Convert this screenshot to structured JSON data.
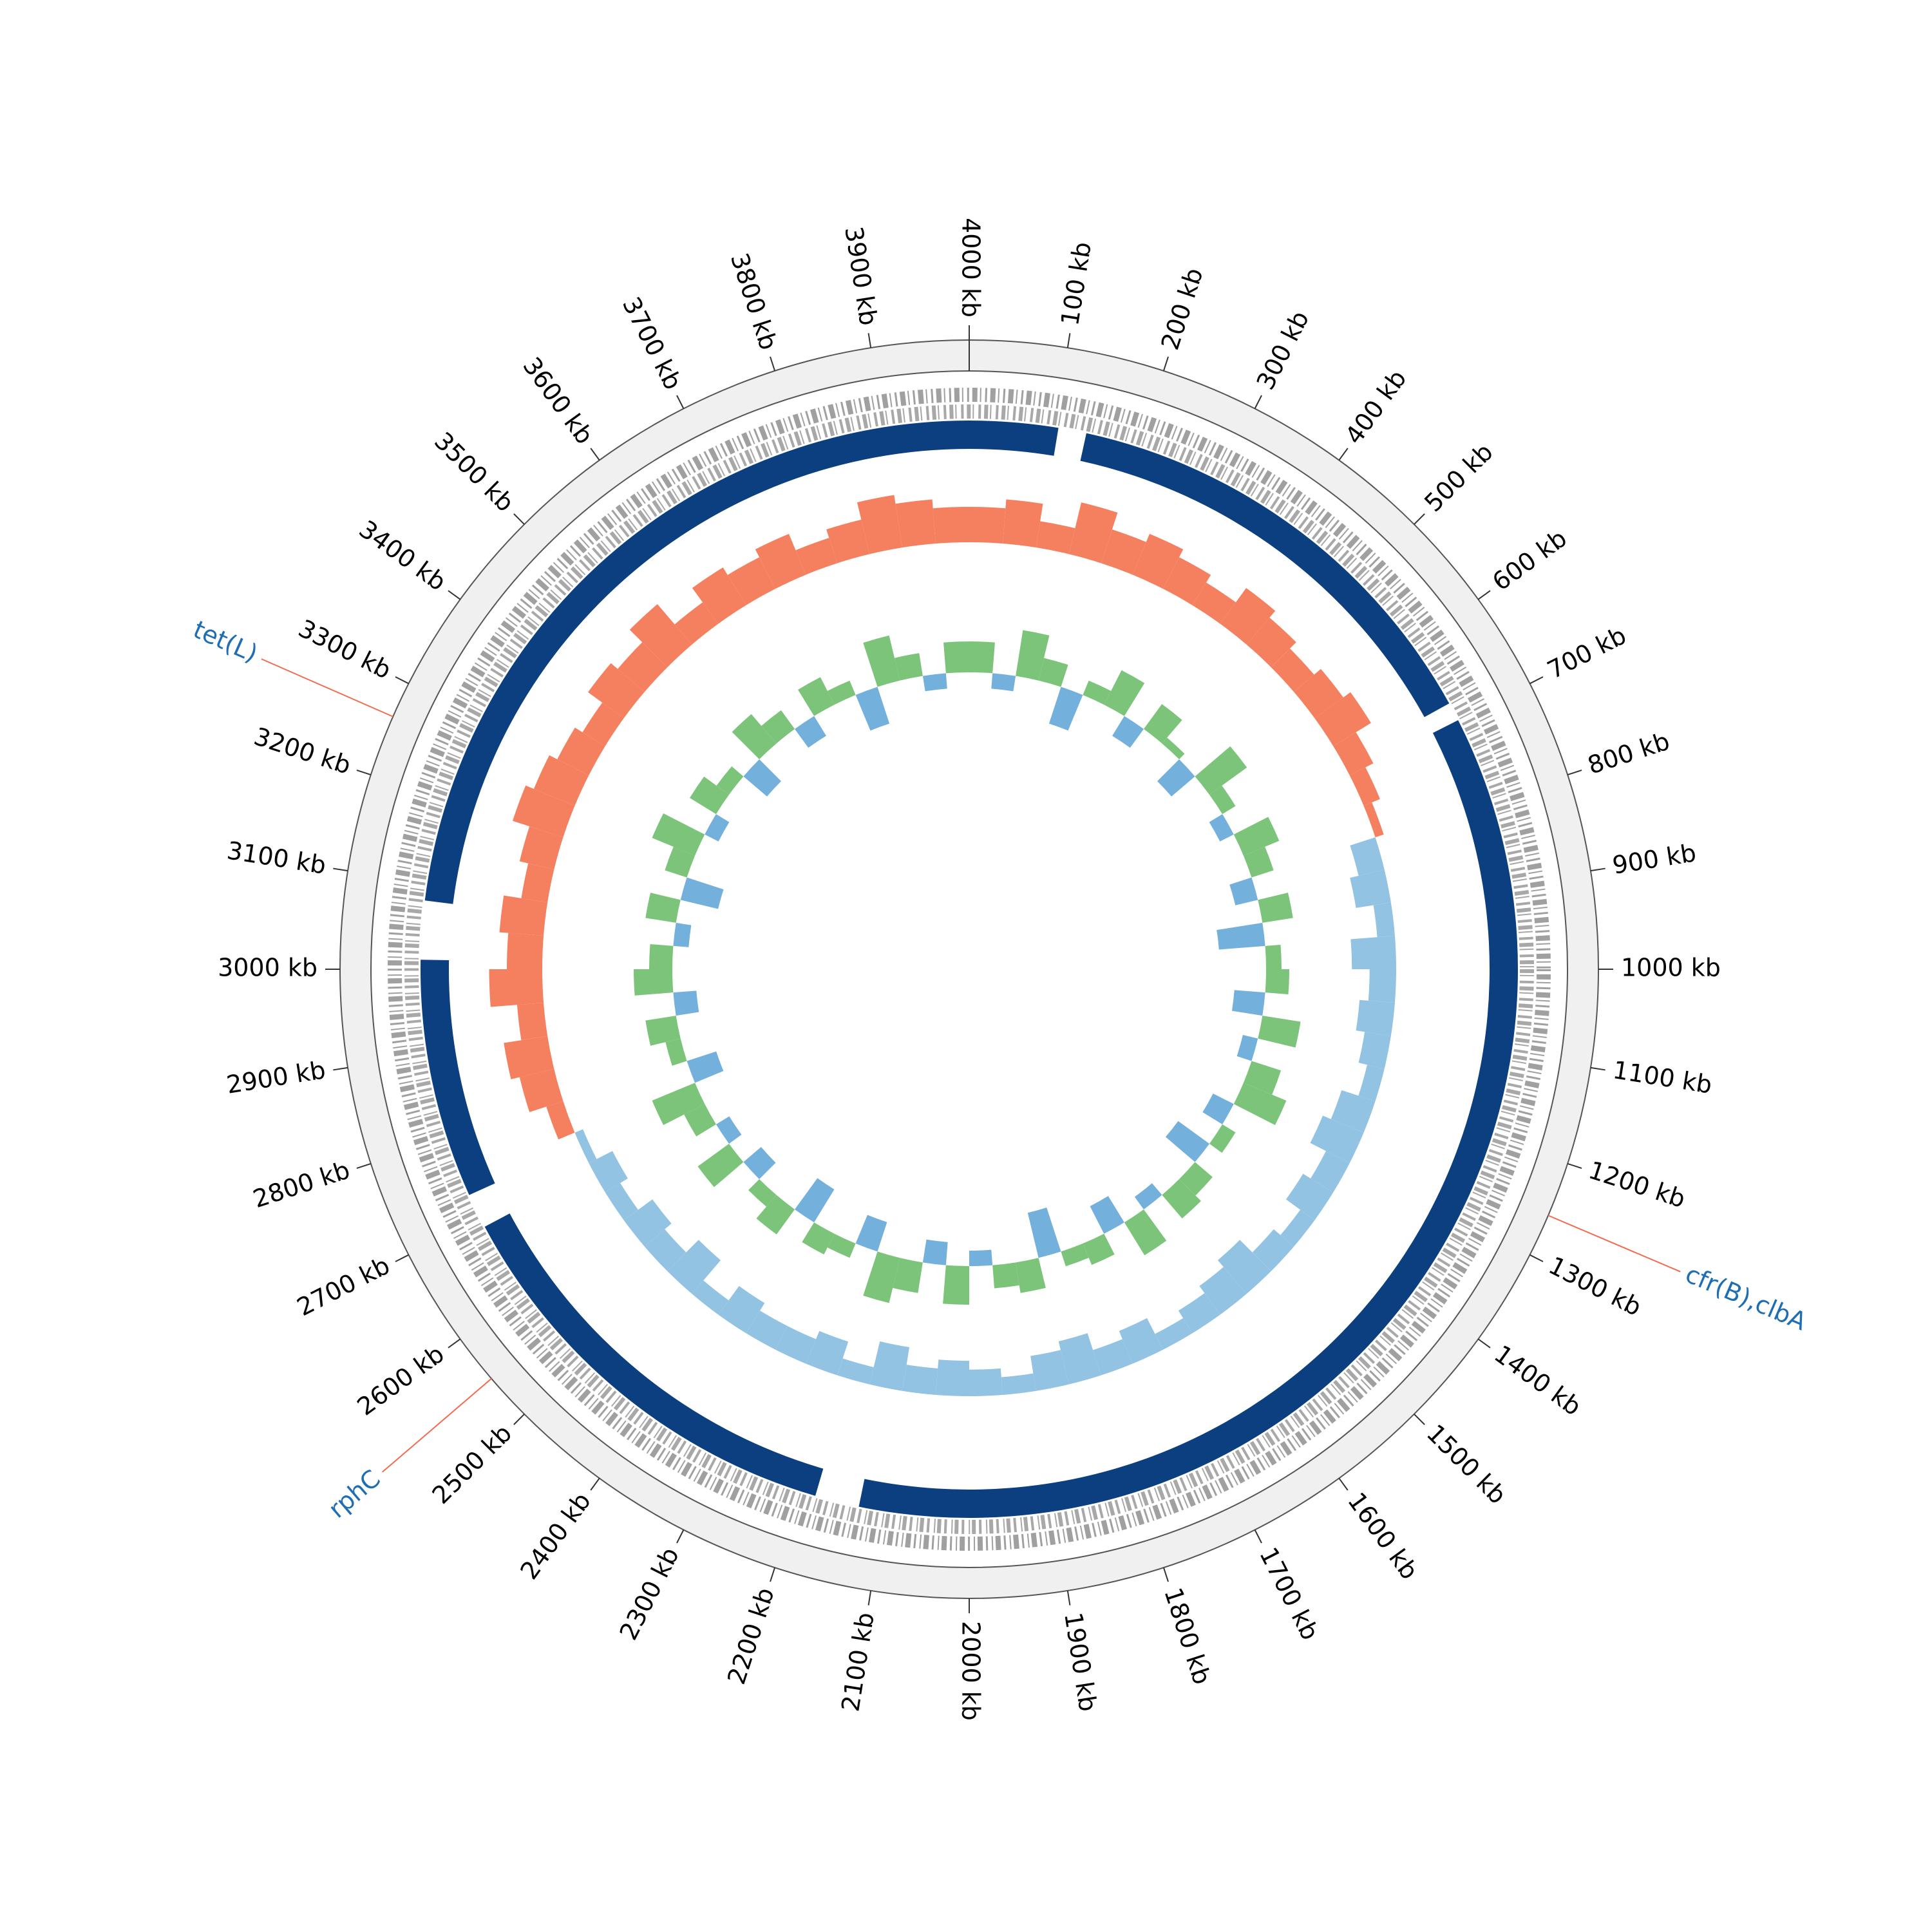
{
  "chart_data": {
    "type": "circular-genome",
    "xlim": [
      0,
      4000
    ],
    "xticks": [
      {
        "value": 100,
        "label": "100 kb"
      },
      {
        "value": 200,
        "label": "200 kb"
      },
      {
        "value": 300,
        "label": "300 kb"
      },
      {
        "value": 400,
        "label": "400 kb"
      },
      {
        "value": 500,
        "label": "500 kb"
      },
      {
        "value": 600,
        "label": "600 kb"
      },
      {
        "value": 700,
        "label": "700 kb"
      },
      {
        "value": 800,
        "label": "800 kb"
      },
      {
        "value": 900,
        "label": "900 kb"
      },
      {
        "value": 1000,
        "label": "1000 kb"
      },
      {
        "value": 1100,
        "label": "1100 kb"
      },
      {
        "value": 1200,
        "label": "1200 kb"
      },
      {
        "value": 1300,
        "label": "1300 kb"
      },
      {
        "value": 1400,
        "label": "1400 kb"
      },
      {
        "value": 1500,
        "label": "1500 kb"
      },
      {
        "value": 1600,
        "label": "1600 kb"
      },
      {
        "value": 1700,
        "label": "1700 kb"
      },
      {
        "value": 1800,
        "label": "1800 kb"
      },
      {
        "value": 1900,
        "label": "1900 kb"
      },
      {
        "value": 2000,
        "label": "2000 kb"
      },
      {
        "value": 2100,
        "label": "2100 kb"
      },
      {
        "value": 2200,
        "label": "2200 kb"
      },
      {
        "value": 2300,
        "label": "2300 kb"
      },
      {
        "value": 2400,
        "label": "2400 kb"
      },
      {
        "value": 2500,
        "label": "2500 kb"
      },
      {
        "value": 2600,
        "label": "2600 kb"
      },
      {
        "value": 2700,
        "label": "2700 kb"
      },
      {
        "value": 2800,
        "label": "2800 kb"
      },
      {
        "value": 2900,
        "label": "2900 kb"
      },
      {
        "value": 3000,
        "label": "3000 kb"
      },
      {
        "value": 3100,
        "label": "3100 kb"
      },
      {
        "value": 3200,
        "label": "3200 kb"
      },
      {
        "value": 3300,
        "label": "3300 kb"
      },
      {
        "value": 3400,
        "label": "3400 kb"
      },
      {
        "value": 3500,
        "label": "3500 kb"
      },
      {
        "value": 3600,
        "label": "3600 kb"
      },
      {
        "value": 3700,
        "label": "3700 kb"
      },
      {
        "value": 3800,
        "label": "3800 kb"
      },
      {
        "value": 3900,
        "label": "3900 kb"
      },
      {
        "value": 4000,
        "label": "4000 kb"
      }
    ],
    "annotations": [
      {
        "label": "tet(L)",
        "position": 3263
      },
      {
        "label": "cfr(B),clbA",
        "position": 1256
      },
      {
        "label": "rphC",
        "position": 2549
      }
    ],
    "annotation_color": "#1f6db3",
    "annotation_line_color": "#f26b4f",
    "blocks": {
      "color": "#0b3f80",
      "ranges": [
        [
          0,
          104
        ],
        [
          137,
          678
        ],
        [
          700,
          2129
        ],
        [
          2181,
          2689
        ],
        [
          2730,
          3011
        ],
        [
          3080,
          4000
        ]
      ]
    },
    "tracks": [
      {
        "color_positive": "#f4805f",
        "color_negative": "#93c3e3",
        "ylim": [
          -8,
          8
        ],
        "values": [
          4,
          5,
          3,
          6,
          4,
          5,
          4,
          3,
          5,
          4,
          3,
          4,
          5,
          3,
          2,
          1,
          -3,
          -4,
          -2,
          -5,
          -3,
          -4,
          -3,
          -2,
          -4,
          -5,
          -3,
          -4,
          -2,
          -3,
          -5,
          -4,
          -3,
          -2,
          -4,
          -3,
          -5,
          -4,
          -2,
          -3,
          -4,
          -3,
          -5,
          -2,
          -4,
          -3,
          -3,
          -4,
          -2,
          -5,
          -3,
          -4,
          -2,
          -3,
          -1,
          2,
          4,
          5,
          3,
          6,
          4,
          5,
          3,
          4,
          6,
          5,
          4,
          3,
          5,
          4,
          6,
          3,
          5,
          4,
          5,
          3,
          4,
          6,
          5,
          4
        ]
      },
      {
        "color_positive": "#7cc47a",
        "color_negative": "#74b0dc",
        "ylim": [
          -0.1,
          0.1
        ],
        "values": [
          0.04,
          -0.02,
          0.06,
          0.03,
          -0.05,
          0.02,
          0.05,
          -0.03,
          0.04,
          0.01,
          -0.04,
          0.06,
          0.02,
          -0.02,
          0.05,
          0.03,
          -0.03,
          0.04,
          -0.06,
          0.02,
          0.03,
          -0.04,
          0.05,
          -0.02,
          0.04,
          0.06,
          -0.03,
          0.02,
          -0.05,
          0.03,
          0.04,
          -0.02,
          0.05,
          -0.04,
          0.03,
          0.02,
          -0.06,
          0.04,
          0.03,
          -0.02,
          0.05,
          -0.03,
          0.04,
          0.06,
          -0.04,
          0.02,
          0.03,
          -0.05,
          0.04,
          0.02,
          -0.03,
          0.05,
          -0.02,
          0.03,
          0.06,
          -0.04,
          0.02,
          0.04,
          -0.03,
          0.05,
          0.03,
          -0.02,
          0.04,
          -0.05,
          0.03,
          0.06,
          -0.02,
          0.04,
          0.02,
          -0.04,
          0.05,
          0.03,
          -0.03,
          0.04,
          0.02,
          -0.05,
          0.06,
          0.03,
          -0.02,
          0.04
        ]
      }
    ]
  }
}
